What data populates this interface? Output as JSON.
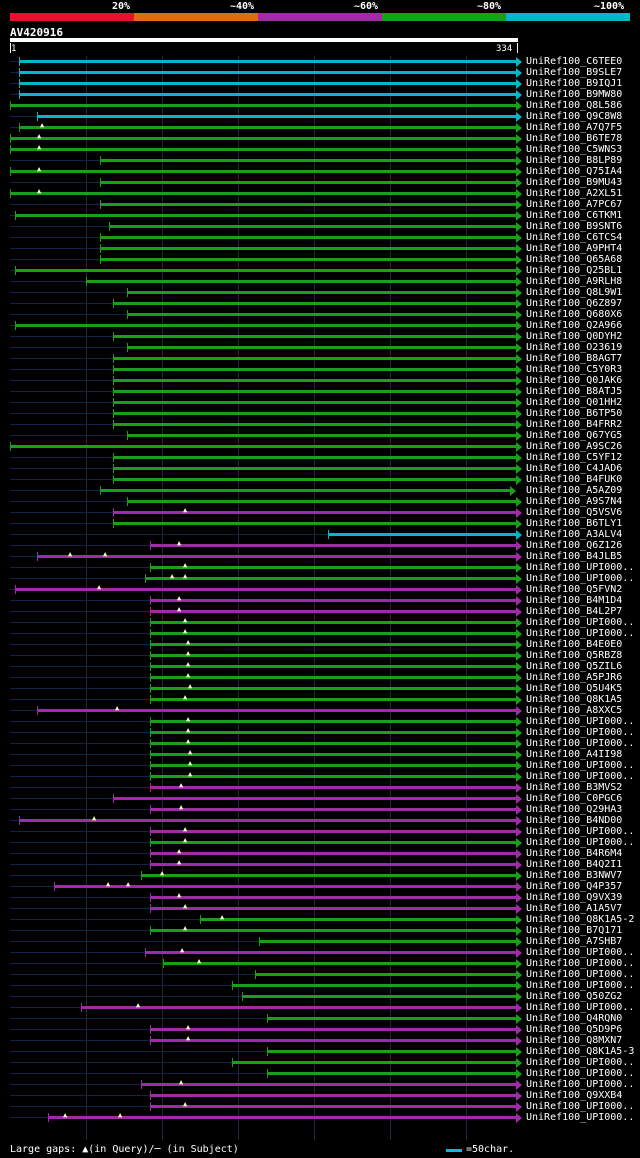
{
  "legend": {
    "labels": [
      "20%",
      "~40%",
      "~60%",
      "~80%",
      "~100%"
    ],
    "colors": [
      "#e8102c",
      "#e06a18",
      "#a02aa8",
      "#18a018",
      "#00b8c8"
    ]
  },
  "query": {
    "id": "AV420916",
    "start": "1",
    "end": "334"
  },
  "footer": {
    "gaps": "Large gaps: ▲(in Query)/─ (in Subject)",
    "scale": "=50char."
  },
  "hits": [
    {
      "name": "UniRef100_C6TEE0",
      "color": "#00b8c8",
      "s": 7,
      "e": 334,
      "m": []
    },
    {
      "name": "UniRef100_B9SLE7",
      "color": "#00b8c8",
      "s": 7,
      "e": 334,
      "m": []
    },
    {
      "name": "UniRef100_B9IQJ1",
      "color": "#00b8c8",
      "s": 7,
      "e": 334,
      "m": []
    },
    {
      "name": "UniRef100_B9MW80",
      "color": "#00b8c8",
      "s": 7,
      "e": 334,
      "m": []
    },
    {
      "name": "UniRef100_Q8L586",
      "color": "#18a018",
      "s": 1,
      "e": 334,
      "m": []
    },
    {
      "name": "UniRef100_Q9C8W8",
      "color": "#00b8c8",
      "s": 19,
      "e": 334,
      "m": []
    },
    {
      "name": "UniRef100_A7Q7F5",
      "color": "#18a018",
      "s": 7,
      "e": 334,
      "m": [
        23
      ]
    },
    {
      "name": "UniRef100_B6TE78",
      "color": "#18a018",
      "s": 1,
      "e": 334,
      "m": [
        21
      ]
    },
    {
      "name": "UniRef100_C5WNS3",
      "color": "#18a018",
      "s": 1,
      "e": 334,
      "m": [
        21
      ]
    },
    {
      "name": "UniRef100_B8LP89",
      "color": "#18a018",
      "s": 60,
      "e": 334,
      "m": []
    },
    {
      "name": "UniRef100_Q75IA4",
      "color": "#18a018",
      "s": 1,
      "e": 334,
      "m": [
        21
      ]
    },
    {
      "name": "UniRef100_B9MU43",
      "color": "#18a018",
      "s": 60,
      "e": 334,
      "m": []
    },
    {
      "name": "UniRef100_A2XL51",
      "color": "#18a018",
      "s": 1,
      "e": 334,
      "m": [
        21
      ]
    },
    {
      "name": "UniRef100_A7PC67",
      "color": "#18a018",
      "s": 60,
      "e": 334,
      "m": []
    },
    {
      "name": "UniRef100_C6TKM1",
      "color": "#18a018",
      "s": 4,
      "e": 334,
      "m": []
    },
    {
      "name": "UniRef100_B9SNT6",
      "color": "#18a018",
      "s": 66,
      "e": 334,
      "m": []
    },
    {
      "name": "UniRef100_C6TCS4",
      "color": "#18a018",
      "s": 60,
      "e": 334,
      "m": []
    },
    {
      "name": "UniRef100_A9PHT4",
      "color": "#18a018",
      "s": 60,
      "e": 334,
      "m": []
    },
    {
      "name": "UniRef100_Q65A68",
      "color": "#18a018",
      "s": 60,
      "e": 334,
      "m": []
    },
    {
      "name": "UniRef100_Q25BL1",
      "color": "#18a018",
      "s": 4,
      "e": 334,
      "m": []
    },
    {
      "name": "UniRef100_A9RLH8",
      "color": "#18a018",
      "s": 51,
      "e": 334,
      "m": []
    },
    {
      "name": "UniRef100_Q8L9W1",
      "color": "#18a018",
      "s": 78,
      "e": 334,
      "m": []
    },
    {
      "name": "UniRef100_Q6Z897",
      "color": "#18a018",
      "s": 69,
      "e": 334,
      "m": []
    },
    {
      "name": "UniRef100_Q680X6",
      "color": "#18a018",
      "s": 78,
      "e": 334,
      "m": []
    },
    {
      "name": "UniRef100_Q2A966",
      "color": "#18a018",
      "s": 4,
      "e": 334,
      "m": []
    },
    {
      "name": "UniRef100_Q0DYH2",
      "color": "#18a018",
      "s": 69,
      "e": 334,
      "m": []
    },
    {
      "name": "UniRef100_O23619",
      "color": "#18a018",
      "s": 78,
      "e": 334,
      "m": []
    },
    {
      "name": "UniRef100_B8AGT7",
      "color": "#18a018",
      "s": 69,
      "e": 334,
      "m": []
    },
    {
      "name": "UniRef100_C5Y0R3",
      "color": "#18a018",
      "s": 69,
      "e": 334,
      "m": []
    },
    {
      "name": "UniRef100_Q0JAK6",
      "color": "#18a018",
      "s": 69,
      "e": 334,
      "m": []
    },
    {
      "name": "UniRef100_B8ATJ5",
      "color": "#18a018",
      "s": 69,
      "e": 334,
      "m": []
    },
    {
      "name": "UniRef100_Q01HH2",
      "color": "#18a018",
      "s": 69,
      "e": 334,
      "m": []
    },
    {
      "name": "UniRef100_B6TP50",
      "color": "#18a018",
      "s": 69,
      "e": 334,
      "m": []
    },
    {
      "name": "UniRef100_B4FRR2",
      "color": "#18a018",
      "s": 69,
      "e": 334,
      "m": []
    },
    {
      "name": "UniRef100_Q67YG5",
      "color": "#18a018",
      "s": 78,
      "e": 334,
      "m": []
    },
    {
      "name": "UniRef100_A9SC26",
      "color": "#18a018",
      "s": 1,
      "e": 334,
      "m": []
    },
    {
      "name": "UniRef100_C5YF12",
      "color": "#18a018",
      "s": 69,
      "e": 334,
      "m": []
    },
    {
      "name": "UniRef100_C4JAD6",
      "color": "#18a018",
      "s": 69,
      "e": 334,
      "m": []
    },
    {
      "name": "UniRef100_B4FUK0",
      "color": "#18a018",
      "s": 69,
      "e": 334,
      "m": []
    },
    {
      "name": "UniRef100_A5AZ09",
      "color": "#18a018",
      "s": 60,
      "e": 330,
      "m": []
    },
    {
      "name": "UniRef100_A9S7N4",
      "color": "#18a018",
      "s": 78,
      "e": 334,
      "m": []
    },
    {
      "name": "UniRef100_Q5VSV6",
      "color": "#a02aa8",
      "s": 69,
      "e": 334,
      "m": [
        117
      ]
    },
    {
      "name": "UniRef100_B6TLY1",
      "color": "#18a018",
      "s": 69,
      "e": 334,
      "m": []
    },
    {
      "name": "UniRef100_A3ALV4",
      "color": "#00b8c8",
      "s": 210,
      "e": 334,
      "m": []
    },
    {
      "name": "UniRef100_Q6Z126",
      "color": "#a02aa8",
      "s": 93,
      "e": 334,
      "m": [
        113
      ]
    },
    {
      "name": "UniRef100_B4JLB5",
      "color": "#a02aa8",
      "s": 19,
      "e": 334,
      "m": [
        41,
        64
      ]
    },
    {
      "name": "UniRef100_UPI000..",
      "color": "#18a018",
      "s": 93,
      "e": 334,
      "m": [
        117
      ]
    },
    {
      "name": "UniRef100_UPI000..",
      "color": "#18a018",
      "s": 90,
      "e": 334,
      "m": [
        108,
        117
      ]
    },
    {
      "name": "UniRef100_Q5FVN2",
      "color": "#a02aa8",
      "s": 4,
      "e": 334,
      "m": [
        60
      ]
    },
    {
      "name": "UniRef100_B4M1D4",
      "color": "#a02aa8",
      "s": 93,
      "e": 334,
      "m": [
        113
      ]
    },
    {
      "name": "UniRef100_B4L2P7",
      "color": "#a02aa8",
      "s": 93,
      "e": 334,
      "m": [
        113
      ]
    },
    {
      "name": "UniRef100_UPI000..",
      "color": "#18a018",
      "s": 93,
      "e": 334,
      "m": [
        117
      ]
    },
    {
      "name": "UniRef100_UPI000..",
      "color": "#18a018",
      "s": 93,
      "e": 334,
      "m": [
        117
      ]
    },
    {
      "name": "UniRef100_B4E0E0",
      "color": "#18a018",
      "s": 93,
      "e": 334,
      "m": [
        119
      ]
    },
    {
      "name": "UniRef100_Q5RBZ8",
      "color": "#18a018",
      "s": 93,
      "e": 334,
      "m": [
        119
      ]
    },
    {
      "name": "UniRef100_Q5ZIL6",
      "color": "#18a018",
      "s": 93,
      "e": 334,
      "m": [
        119
      ]
    },
    {
      "name": "UniRef100_A5PJR6",
      "color": "#18a018",
      "s": 93,
      "e": 334,
      "m": [
        119
      ]
    },
    {
      "name": "UniRef100_Q5U4K5",
      "color": "#18a018",
      "s": 93,
      "e": 334,
      "m": [
        120
      ]
    },
    {
      "name": "UniRef100_Q8K1A5",
      "color": "#18a018",
      "s": 93,
      "e": 334,
      "m": [
        117
      ]
    },
    {
      "name": "UniRef100_A8XXC5",
      "color": "#a02aa8",
      "s": 19,
      "e": 334,
      "m": [
        72
      ]
    },
    {
      "name": "UniRef100_UPI000..",
      "color": "#18a018",
      "s": 93,
      "e": 334,
      "m": [
        119
      ]
    },
    {
      "name": "UniRef100_UPI000..",
      "color": "#18a018",
      "s": 93,
      "e": 334,
      "m": [
        119
      ]
    },
    {
      "name": "UniRef100_UPI000..",
      "color": "#18a018",
      "s": 93,
      "e": 334,
      "m": [
        119
      ]
    },
    {
      "name": "UniRef100_A4II98",
      "color": "#18a018",
      "s": 93,
      "e": 334,
      "m": [
        120
      ]
    },
    {
      "name": "UniRef100_UPI000..",
      "color": "#18a018",
      "s": 93,
      "e": 334,
      "m": [
        120
      ]
    },
    {
      "name": "UniRef100_UPI000..",
      "color": "#18a018",
      "s": 93,
      "e": 334,
      "m": [
        120
      ]
    },
    {
      "name": "UniRef100_B3MVS2",
      "color": "#a02aa8",
      "s": 93,
      "e": 334,
      "m": [
        114
      ]
    },
    {
      "name": "UniRef100_C0PGC6",
      "color": "#a02aa8",
      "s": 69,
      "e": 334,
      "m": []
    },
    {
      "name": "UniRef100_Q29HA3",
      "color": "#a02aa8",
      "s": 93,
      "e": 334,
      "m": [
        114
      ]
    },
    {
      "name": "UniRef100_B4ND00",
      "color": "#a02aa8",
      "s": 7,
      "e": 334,
      "m": [
        57
      ]
    },
    {
      "name": "UniRef100_UPI000..",
      "color": "#a02aa8",
      "s": 93,
      "e": 334,
      "m": [
        117
      ]
    },
    {
      "name": "UniRef100_UPI000..",
      "color": "#18a018",
      "s": 93,
      "e": 334,
      "m": [
        117
      ]
    },
    {
      "name": "UniRef100_B4R6M4",
      "color": "#a02aa8",
      "s": 93,
      "e": 334,
      "m": [
        113
      ]
    },
    {
      "name": "UniRef100_B4Q2I1",
      "color": "#a02aa8",
      "s": 93,
      "e": 334,
      "m": [
        113
      ]
    },
    {
      "name": "UniRef100_B3NWV7",
      "color": "#18a018",
      "s": 87,
      "e": 334,
      "m": [
        102
      ]
    },
    {
      "name": "UniRef100_Q4P357",
      "color": "#a02aa8",
      "s": 30,
      "e": 334,
      "m": [
        66,
        79
      ]
    },
    {
      "name": "UniRef100_Q9VX39",
      "color": "#a02aa8",
      "s": 93,
      "e": 334,
      "m": [
        113
      ]
    },
    {
      "name": "UniRef100_A1A5V7",
      "color": "#a02aa8",
      "s": 93,
      "e": 334,
      "m": [
        117
      ]
    },
    {
      "name": "UniRef100_Q8K1A5-2",
      "color": "#18a018",
      "s": 126,
      "e": 334,
      "m": [
        141
      ]
    },
    {
      "name": "UniRef100_B7Q171",
      "color": "#18a018",
      "s": 93,
      "e": 334,
      "m": [
        117
      ]
    },
    {
      "name": "UniRef100_A7SHB7",
      "color": "#18a018",
      "s": 165,
      "e": 334,
      "m": []
    },
    {
      "name": "UniRef100_UPI000..",
      "color": "#a02aa8",
      "s": 90,
      "e": 334,
      "m": [
        115
      ]
    },
    {
      "name": "UniRef100_UPI000..",
      "color": "#18a018",
      "s": 102,
      "e": 334,
      "m": [
        126
      ]
    },
    {
      "name": "UniRef100_UPI000..",
      "color": "#18a018",
      "s": 162,
      "e": 334,
      "m": []
    },
    {
      "name": "UniRef100_UPI000..",
      "color": "#18a018",
      "s": 147,
      "e": 334,
      "m": []
    },
    {
      "name": "UniRef100_Q50ZG2",
      "color": "#18a018",
      "s": 154,
      "e": 334,
      "m": []
    },
    {
      "name": "UniRef100_UPI000..",
      "color": "#a02aa8",
      "s": 48,
      "e": 334,
      "m": [
        86
      ]
    },
    {
      "name": "UniRef100_Q4RQN0",
      "color": "#18a018",
      "s": 170,
      "e": 334,
      "m": []
    },
    {
      "name": "UniRef100_Q5D9P6",
      "color": "#a02aa8",
      "s": 93,
      "e": 334,
      "m": [
        119
      ]
    },
    {
      "name": "UniRef100_Q8MXN7",
      "color": "#a02aa8",
      "s": 93,
      "e": 334,
      "m": [
        119
      ]
    },
    {
      "name": "UniRef100_Q8K1A5-3",
      "color": "#18a018",
      "s": 170,
      "e": 334,
      "m": []
    },
    {
      "name": "UniRef100_UPI000..",
      "color": "#18a018",
      "s": 147,
      "e": 334,
      "m": []
    },
    {
      "name": "UniRef100_UPI000..",
      "color": "#18a018",
      "s": 170,
      "e": 334,
      "m": []
    },
    {
      "name": "UniRef100_UPI000..",
      "color": "#a02aa8",
      "s": 87,
      "e": 334,
      "m": [
        114
      ]
    },
    {
      "name": "UniRef100_Q9XXB4",
      "color": "#a02aa8",
      "s": 93,
      "e": 334,
      "m": []
    },
    {
      "name": "UniRef100_UPI000..",
      "color": "#a02aa8",
      "s": 93,
      "e": 334,
      "m": [
        117
      ]
    },
    {
      "name": "UniRef100_UPI000..",
      "color": "#a02aa8",
      "s": 26,
      "e": 334,
      "m": [
        38,
        74
      ]
    }
  ]
}
